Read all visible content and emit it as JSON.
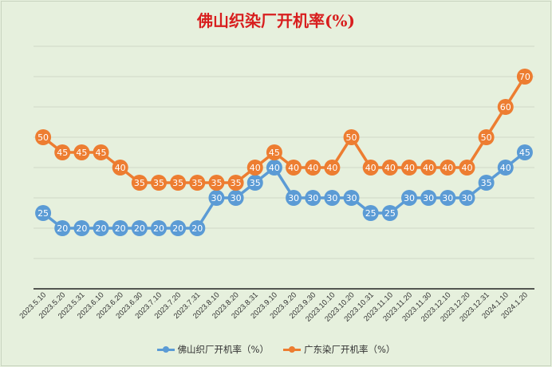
{
  "chart_data": {
    "type": "line",
    "title": "佛山织染厂开机率(%)",
    "categories": [
      "2023.5.10",
      "2023.5.20",
      "2023.5.31",
      "2023.6.10",
      "2023.6.20",
      "2023.6.30",
      "2023.7.10",
      "2023.7.20",
      "2023.7.31",
      "2023.8.10",
      "2023.8.20",
      "2023.8.31",
      "2023.9.10",
      "2023.9.20",
      "2023.9.30",
      "2023.10.10",
      "2023.10.20",
      "2023.10.31",
      "2023.11.10",
      "2023.11.20",
      "2023.11.30",
      "2023.12.10",
      "2023.12.20",
      "2023.12.31",
      "2024.1.10",
      "2024.1.20"
    ],
    "series": [
      {
        "name": "佛山织厂开机率（%）",
        "color": "#5b9bd5",
        "values": [
          25,
          20,
          20,
          20,
          20,
          20,
          20,
          20,
          20,
          30,
          30,
          35,
          40,
          30,
          30,
          30,
          30,
          25,
          25,
          30,
          30,
          30,
          30,
          35,
          40,
          45
        ]
      },
      {
        "name": "广东染厂开机率（%）",
        "color": "#ed7d31",
        "values": [
          50,
          45,
          45,
          45,
          40,
          35,
          35,
          35,
          35,
          35,
          35,
          40,
          45,
          40,
          40,
          40,
          50,
          40,
          40,
          40,
          40,
          40,
          40,
          50,
          60,
          70
        ]
      }
    ],
    "ylim": [
      0,
      80
    ],
    "grid": true,
    "legend_position": "bottom",
    "data_labels": true
  }
}
